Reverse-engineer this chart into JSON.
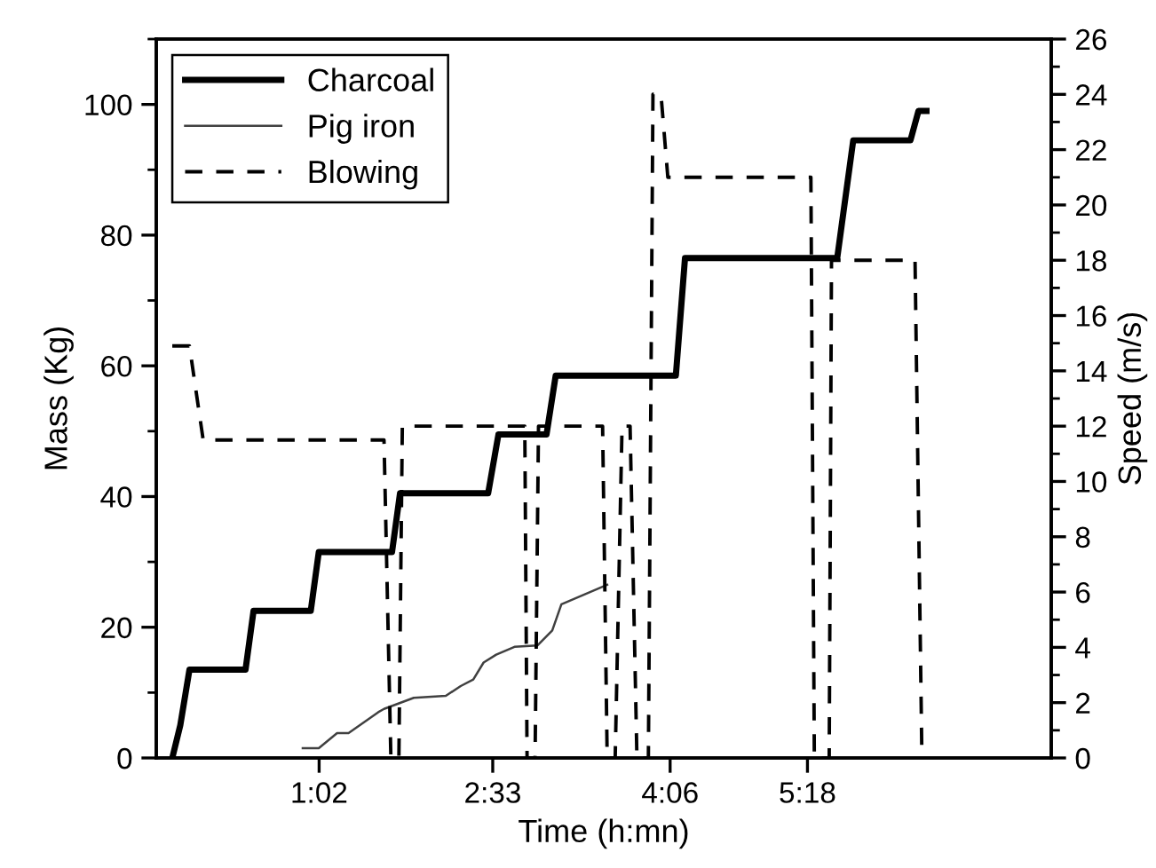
{
  "chart_data": {
    "type": "line",
    "xlabel": "Time (h:mn)",
    "ylabel": "Mass (Kg)",
    "y2label": "Speed (m/s)",
    "xlim": [
      -0.39,
      7.43
    ],
    "xticks": [
      {
        "value": 1.033,
        "label": "1:02"
      },
      {
        "value": 2.55,
        "label": "2:33"
      },
      {
        "value": 4.1,
        "label": "4:06"
      },
      {
        "value": 5.3,
        "label": "5:18"
      }
    ],
    "ylim": [
      0,
      110
    ],
    "yticks": [
      0,
      20,
      40,
      60,
      80,
      100
    ],
    "y2lim": [
      0,
      26
    ],
    "y2ticks": [
      0,
      2,
      4,
      6,
      8,
      10,
      12,
      14,
      16,
      18,
      20,
      22,
      24,
      26
    ],
    "legend": "top left",
    "grid": false,
    "marker": "none",
    "series": [
      {
        "name": "Charcoal",
        "color": "#000000",
        "line_style": "solid",
        "x": [
          -0.25,
          -0.18,
          -0.1,
          0.39,
          0.46,
          0.96,
          1.03,
          1.67,
          1.74,
          2.51,
          2.6,
          3.02,
          3.1,
          4.15,
          4.23,
          5.56,
          5.7,
          6.2,
          6.27,
          6.34
        ],
        "values": [
          0,
          5,
          13.5,
          13.5,
          22.5,
          22.5,
          31.5,
          31.5,
          40.5,
          40.5,
          49.5,
          49.5,
          58.5,
          58.5,
          76.5,
          76.5,
          94.5,
          94.5,
          99,
          99
        ]
      },
      {
        "name": "Pig iron",
        "color": "#404040",
        "line_style": "solid",
        "x": [
          0.89,
          1.03,
          1.19,
          1.29,
          1.55,
          1.6,
          1.86,
          2.14,
          2.27,
          2.38,
          2.47,
          2.58,
          2.74,
          2.94,
          3.07,
          3.15,
          3.35,
          3.55
        ],
        "values": [
          1.5,
          1.5,
          3.8,
          3.8,
          7,
          7.5,
          9.2,
          9.5,
          11,
          12,
          14.6,
          15.8,
          17,
          17.2,
          19.5,
          23.5,
          25,
          26.5
        ]
      },
      {
        "name": "Blowing",
        "color": "#000000",
        "line_style": "dashed",
        "axis": "y2",
        "x": [
          -0.25,
          -0.1,
          0.02,
          1.6,
          1.66,
          1.73,
          1.76,
          2.83,
          2.85,
          2.92,
          2.95,
          3.51,
          3.55,
          3.62,
          3.68,
          3.75,
          3.81,
          3.91,
          3.95,
          4.02,
          4.08,
          5.33,
          5.36,
          5.49,
          5.51,
          6.24,
          6.3
        ],
        "values": [
          14.9,
          14.9,
          11.5,
          11.5,
          0,
          0,
          12,
          12,
          0,
          0,
          12,
          12,
          0,
          0,
          12,
          12,
          0,
          0,
          24,
          24,
          21,
          21,
          0,
          0,
          18,
          18,
          0
        ]
      }
    ]
  }
}
